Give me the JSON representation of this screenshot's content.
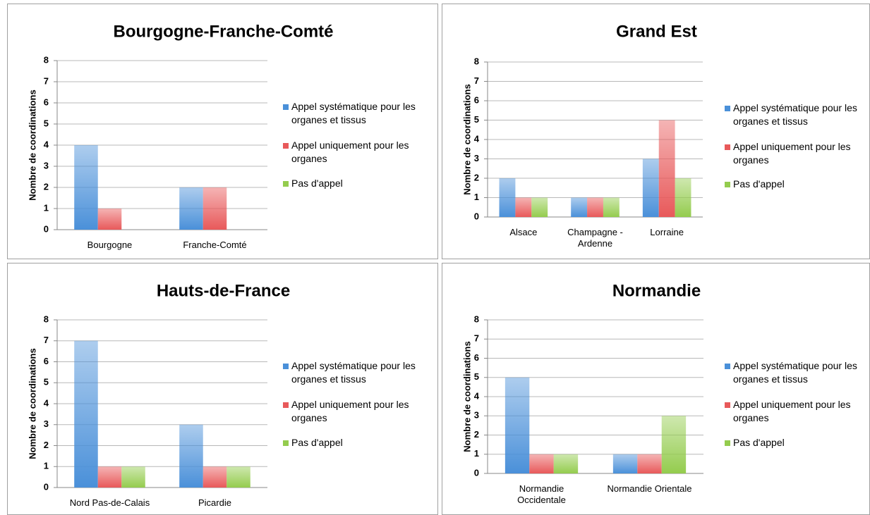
{
  "chart_data": [
    {
      "type": "bar",
      "title": "Bourgogne-Franche-Comté",
      "y_label": "Nombre de coordinations",
      "categories": [
        "Bourgogne",
        "Franche-Comté"
      ],
      "series": [
        {
          "name": "Appel systématique pour les organes et tissus",
          "color": "#4a90d9",
          "values": [
            4,
            2
          ]
        },
        {
          "name": "Appel uniquement pour les organes",
          "color": "#e8595a",
          "values": [
            1,
            2
          ]
        },
        {
          "name": "Pas d'appel",
          "color": "#94cc4e",
          "values": [
            0,
            0
          ]
        }
      ],
      "ylim": [
        0,
        8
      ],
      "yticks": [
        0,
        1,
        2,
        3,
        4,
        5,
        6,
        7,
        8
      ],
      "grid": true,
      "legend": "right"
    },
    {
      "type": "bar",
      "title": "Grand Est",
      "y_label": "Nombre de coordinations",
      "categories": [
        "Alsace",
        "Champagne - Ardenne",
        "Lorraine"
      ],
      "series": [
        {
          "name": "Appel systématique pour les organes et tissus",
          "color": "#4a90d9",
          "values": [
            2,
            1,
            3
          ]
        },
        {
          "name": "Appel uniquement pour les organes",
          "color": "#e8595a",
          "values": [
            1,
            1,
            5
          ]
        },
        {
          "name": "Pas d'appel",
          "color": "#94cc4e",
          "values": [
            1,
            1,
            2
          ]
        }
      ],
      "ylim": [
        0,
        8
      ],
      "yticks": [
        0,
        1,
        2,
        3,
        4,
        5,
        6,
        7,
        8
      ],
      "grid": true,
      "legend": "right"
    },
    {
      "type": "bar",
      "title": "Hauts-de-France",
      "y_label": "Nombre de coordinations",
      "categories": [
        "Nord Pas-de-Calais",
        "Picardie"
      ],
      "series": [
        {
          "name": "Appel systématique pour les organes et tissus",
          "color": "#4a90d9",
          "values": [
            7,
            3
          ]
        },
        {
          "name": "Appel uniquement pour les organes",
          "color": "#e8595a",
          "values": [
            1,
            1
          ]
        },
        {
          "name": "Pas d'appel",
          "color": "#94cc4e",
          "values": [
            1,
            1
          ]
        }
      ],
      "ylim": [
        0,
        8
      ],
      "yticks": [
        0,
        1,
        2,
        3,
        4,
        5,
        6,
        7,
        8
      ],
      "grid": true,
      "legend": "right"
    },
    {
      "type": "bar",
      "title": "Normandie",
      "y_label": "Nombre de coordinations",
      "categories": [
        "Normandie Occidentale",
        "Normandie Orientale"
      ],
      "series": [
        {
          "name": "Appel systématique pour les organes et tissus",
          "color": "#4a90d9",
          "values": [
            5,
            1
          ]
        },
        {
          "name": "Appel uniquement pour les organes",
          "color": "#e8595a",
          "values": [
            1,
            1
          ]
        },
        {
          "name": "Pas d'appel",
          "color": "#94cc4e",
          "values": [
            1,
            3
          ]
        }
      ],
      "ylim": [
        0,
        8
      ],
      "yticks": [
        0,
        1,
        2,
        3,
        4,
        5,
        6,
        7,
        8
      ],
      "grid": true,
      "legend": "right"
    }
  ]
}
